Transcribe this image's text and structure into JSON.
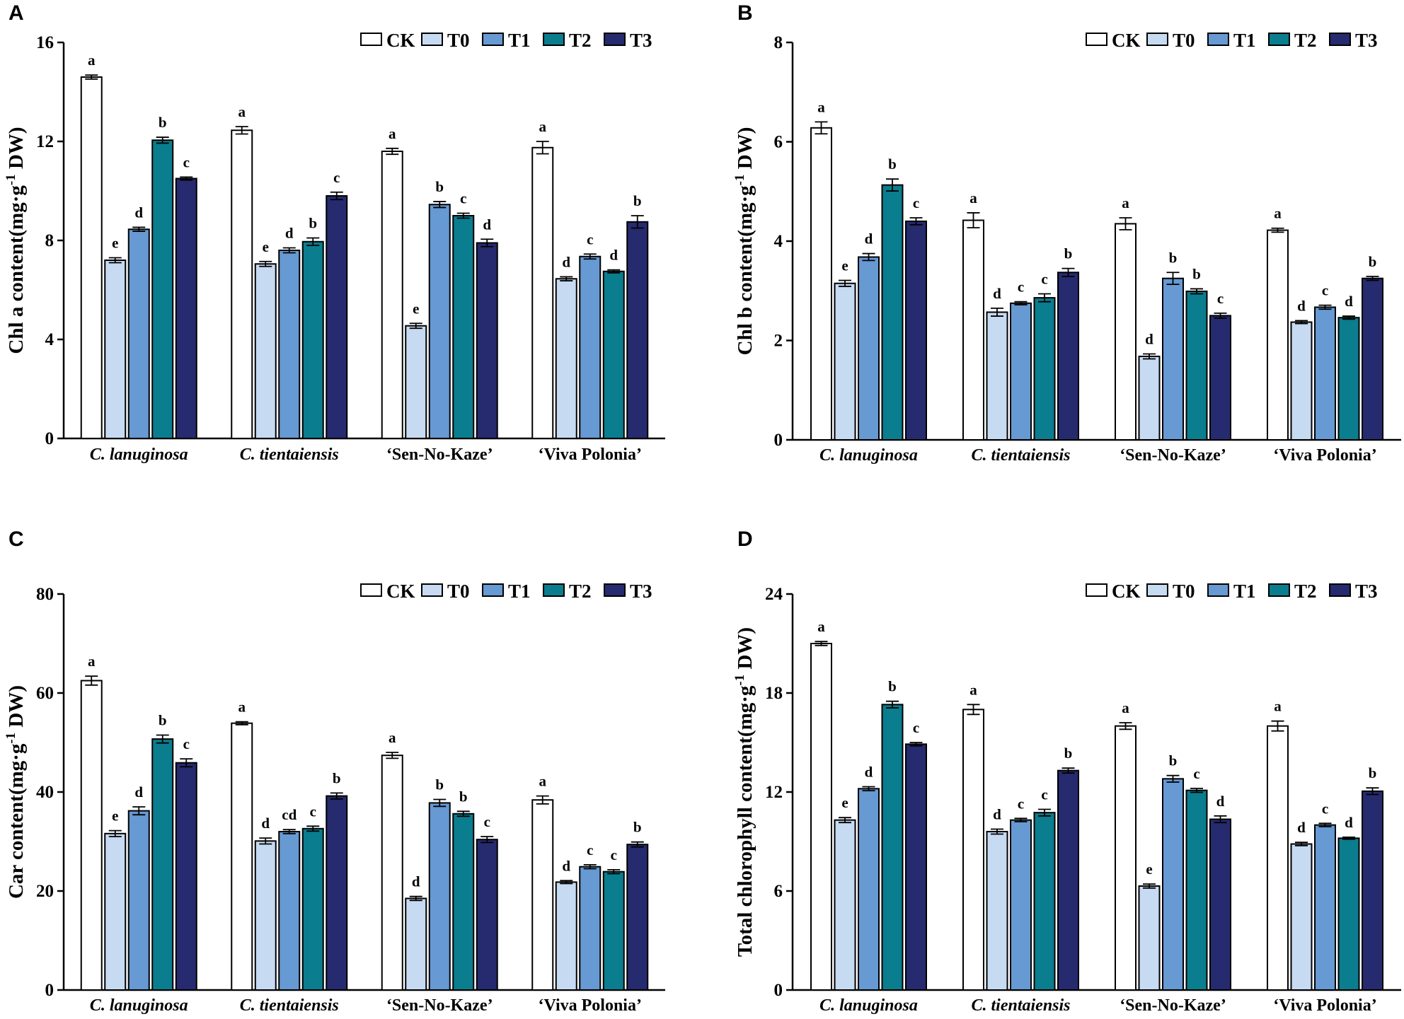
{
  "colors": {
    "CK": "#ffffff",
    "T0": "#c6daf2",
    "T1": "#6799d3",
    "T2": "#0a7d8e",
    "T3": "#262a6e"
  },
  "chart_data": [
    {
      "panel": "A",
      "type": "bar",
      "ylabel_main": "Chl a content(mg·g",
      "ylabel_sup": "-1",
      "ylabel_end": " DW)",
      "ylim": [
        0,
        16
      ],
      "yticks": [
        "0",
        "4",
        "8",
        "12",
        "16"
      ],
      "categories": [
        "C. lanuginosa",
        "C. tientaiensis",
        "‘Sen-No-Kaze’",
        "‘Viva Polonia’"
      ],
      "legend": [
        "CK",
        "T0",
        "T1",
        "T2",
        "T3"
      ],
      "series": [
        {
          "name": "CK",
          "values": [
            14.6,
            12.45,
            11.6,
            11.75
          ],
          "errors": [
            0.08,
            0.15,
            0.12,
            0.25
          ],
          "letters": [
            "a",
            "a",
            "a",
            "a"
          ]
        },
        {
          "name": "T0",
          "values": [
            7.2,
            7.05,
            4.55,
            6.45
          ],
          "errors": [
            0.1,
            0.1,
            0.1,
            0.08
          ],
          "letters": [
            "e",
            "e",
            "e",
            "d"
          ]
        },
        {
          "name": "T1",
          "values": [
            8.45,
            7.6,
            9.45,
            7.35
          ],
          "errors": [
            0.08,
            0.1,
            0.12,
            0.1
          ],
          "letters": [
            "d",
            "d",
            "b",
            "c"
          ]
        },
        {
          "name": "T2",
          "values": [
            12.05,
            7.95,
            9.0,
            6.75
          ],
          "errors": [
            0.12,
            0.15,
            0.1,
            0.06
          ],
          "letters": [
            "b",
            "b",
            "c",
            "d"
          ]
        },
        {
          "name": "T3",
          "values": [
            10.5,
            9.8,
            7.9,
            8.75
          ],
          "errors": [
            0.06,
            0.15,
            0.15,
            0.25
          ],
          "letters": [
            "c",
            "c",
            "d",
            "b"
          ]
        }
      ]
    },
    {
      "panel": "B",
      "type": "bar",
      "ylabel_main": "Chl b content(mg·g",
      "ylabel_sup": "-1",
      "ylabel_end": " DW)",
      "ylim": [
        0,
        8
      ],
      "yticks": [
        "0",
        "2",
        "4",
        "6",
        "8"
      ],
      "categories": [
        "C. lanuginosa",
        "C. tientaiensis",
        "‘Sen-No-Kaze’",
        "‘Viva Polonia’"
      ],
      "legend": [
        "CK",
        "T0",
        "T1",
        "T2",
        "T3"
      ],
      "series": [
        {
          "name": "CK",
          "values": [
            6.28,
            4.42,
            4.35,
            4.22
          ],
          "errors": [
            0.12,
            0.15,
            0.12,
            0.04
          ],
          "letters": [
            "a",
            "a",
            "a",
            "a"
          ]
        },
        {
          "name": "T0",
          "values": [
            3.15,
            2.57,
            1.68,
            2.37
          ],
          "errors": [
            0.06,
            0.08,
            0.05,
            0.03
          ],
          "letters": [
            "e",
            "d",
            "d",
            "d"
          ]
        },
        {
          "name": "T1",
          "values": [
            3.68,
            2.75,
            3.25,
            2.67
          ],
          "errors": [
            0.07,
            0.03,
            0.12,
            0.04
          ],
          "letters": [
            "d",
            "c",
            "b",
            "c"
          ]
        },
        {
          "name": "T2",
          "values": [
            5.13,
            2.86,
            2.99,
            2.46
          ],
          "errors": [
            0.12,
            0.08,
            0.05,
            0.03
          ],
          "letters": [
            "b",
            "c",
            "b",
            "d"
          ]
        },
        {
          "name": "T3",
          "values": [
            4.4,
            3.37,
            2.5,
            3.25
          ],
          "errors": [
            0.07,
            0.08,
            0.05,
            0.04
          ],
          "letters": [
            "c",
            "b",
            "c",
            "b"
          ]
        }
      ]
    },
    {
      "panel": "C",
      "type": "bar",
      "ylabel_main": "Car content(mg·g",
      "ylabel_sup": "-1",
      "ylabel_end": " DW)",
      "ylim": [
        0,
        80
      ],
      "yticks": [
        "0",
        "20",
        "40",
        "60",
        "80"
      ],
      "categories": [
        "C. lanuginosa",
        "C. tientaiensis",
        "‘Sen-No-Kaze’",
        "‘Viva Polonia’"
      ],
      "legend": [
        "CK",
        "T0",
        "T1",
        "T2",
        "T3"
      ],
      "series": [
        {
          "name": "CK",
          "values": [
            62.5,
            53.9,
            47.4,
            38.4
          ],
          "errors": [
            0.9,
            0.3,
            0.6,
            0.8
          ],
          "letters": [
            "a",
            "a",
            "a",
            "a"
          ]
        },
        {
          "name": "T0",
          "values": [
            31.6,
            30.1,
            18.5,
            21.8
          ],
          "errors": [
            0.6,
            0.6,
            0.4,
            0.3
          ],
          "letters": [
            "e",
            "d",
            "d",
            "d"
          ]
        },
        {
          "name": "T1",
          "values": [
            36.2,
            32.0,
            37.8,
            24.9
          ],
          "errors": [
            0.8,
            0.4,
            0.7,
            0.4
          ],
          "letters": [
            "d",
            "cd",
            "b",
            "c"
          ]
        },
        {
          "name": "T2",
          "values": [
            50.7,
            32.6,
            35.6,
            23.9
          ],
          "errors": [
            0.8,
            0.5,
            0.5,
            0.4
          ],
          "letters": [
            "b",
            "c",
            "b",
            "c"
          ]
        },
        {
          "name": "T3",
          "values": [
            45.9,
            39.2,
            30.4,
            29.4
          ],
          "errors": [
            0.8,
            0.6,
            0.6,
            0.5
          ],
          "letters": [
            "c",
            "b",
            "c",
            "b"
          ]
        }
      ]
    },
    {
      "panel": "D",
      "type": "bar",
      "ylabel_main": "Total chlorophyll content(mg·g",
      "ylabel_sup": "-1",
      "ylabel_end": " DW)",
      "ylim": [
        0,
        24
      ],
      "yticks": [
        "0",
        "6",
        "12",
        "18",
        "24"
      ],
      "categories": [
        "C. lanuginosa",
        "C. tientaiensis",
        "‘Sen-No-Kaze’",
        "‘Viva Polonia’"
      ],
      "legend": [
        "CK",
        "T0",
        "T1",
        "T2",
        "T3"
      ],
      "series": [
        {
          "name": "CK",
          "values": [
            21.0,
            17.0,
            16.0,
            16.0
          ],
          "errors": [
            0.12,
            0.3,
            0.2,
            0.3
          ],
          "letters": [
            "a",
            "a",
            "a",
            "a"
          ]
        },
        {
          "name": "T0",
          "values": [
            10.3,
            9.6,
            6.3,
            8.85
          ],
          "errors": [
            0.15,
            0.15,
            0.12,
            0.1
          ],
          "letters": [
            "e",
            "d",
            "e",
            "d"
          ]
        },
        {
          "name": "T1",
          "values": [
            12.2,
            10.3,
            12.8,
            10.0
          ],
          "errors": [
            0.12,
            0.1,
            0.2,
            0.1
          ],
          "letters": [
            "d",
            "c",
            "b",
            "c"
          ]
        },
        {
          "name": "T2",
          "values": [
            17.3,
            10.75,
            12.1,
            9.2
          ],
          "errors": [
            0.2,
            0.2,
            0.12,
            0.06
          ],
          "letters": [
            "b",
            "c",
            "c",
            "d"
          ]
        },
        {
          "name": "T3",
          "values": [
            14.9,
            13.3,
            10.35,
            12.05
          ],
          "errors": [
            0.1,
            0.15,
            0.2,
            0.2
          ],
          "letters": [
            "c",
            "b",
            "d",
            "b"
          ]
        }
      ]
    }
  ]
}
